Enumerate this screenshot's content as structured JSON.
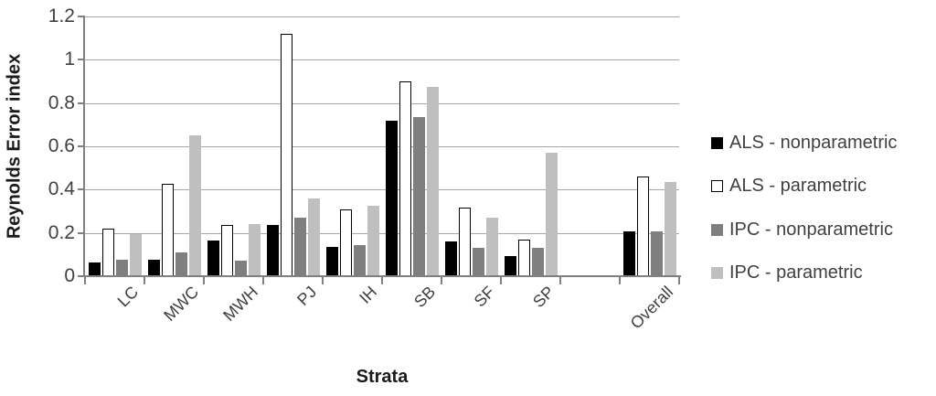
{
  "colors": {
    "text": "#404040",
    "title_text": "#1a1a1a",
    "grid": "#a6a6a6",
    "axis": "#808080",
    "background": "#ffffff"
  },
  "chart_data": {
    "type": "bar",
    "title": "",
    "xlabel": "Strata",
    "ylabel": "Reynolds Error index",
    "ylim": [
      0,
      1.2
    ],
    "yticks": [
      0,
      0.2,
      0.4,
      0.6,
      0.8,
      1,
      1.2
    ],
    "ytick_labels": [
      "0",
      "0.2",
      "0.4",
      "0.6",
      "0.8",
      "1",
      "1.2"
    ],
    "grid": true,
    "legend_position": "right",
    "categories": [
      "LC",
      "MWC",
      "MWH",
      "PJ",
      "IH",
      "SB",
      "SF",
      "SP",
      "Overall"
    ],
    "gap_slot_before_last": true,
    "series": [
      {
        "name": "ALS - nonparametric",
        "fill": "#000000",
        "border": "#000000",
        "values": [
          0.065,
          0.075,
          0.165,
          0.235,
          0.135,
          0.72,
          0.16,
          0.095,
          0.205
        ]
      },
      {
        "name": "ALS - parametric",
        "fill": "#ffffff",
        "border": "#000000",
        "values": [
          0.22,
          0.425,
          0.235,
          1.12,
          0.31,
          0.9,
          0.315,
          0.17,
          0.46
        ]
      },
      {
        "name": "IPC - nonparametric",
        "fill": "#7f7f7f",
        "border": "#7f7f7f",
        "values": [
          0.075,
          0.11,
          0.07,
          0.27,
          0.145,
          0.735,
          0.13,
          0.13,
          0.205
        ]
      },
      {
        "name": "IPC - parametric",
        "fill": "#bfbfbf",
        "border": "#bfbfbf",
        "values": [
          0.195,
          0.65,
          0.24,
          0.36,
          0.325,
          0.875,
          0.27,
          0.57,
          0.435
        ]
      }
    ]
  }
}
